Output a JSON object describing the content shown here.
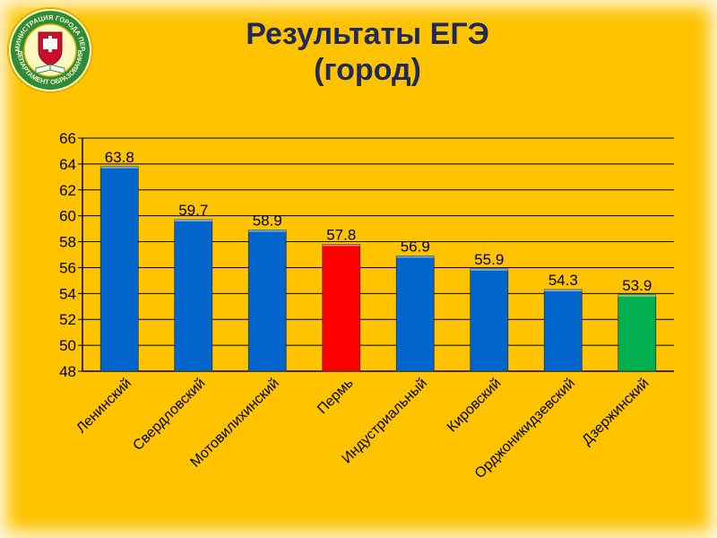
{
  "title_line1": "Результаты ЕГЭ",
  "title_line2": "(город)",
  "logo": {
    "top_text": "АДМИНИСТРАЦИЯ ГОРОДА ПЕРМИ",
    "bottom_text": "ДЕПАРТАМЕНТ ОБРАЗОВАНИЯ"
  },
  "colors": {
    "background": "#FFC300",
    "bar_default": "#0066CC",
    "bar_highlight_red": "#FF0000",
    "bar_highlight_green": "#00B050"
  },
  "chart_data": {
    "type": "bar",
    "categories": [
      "Ленинский",
      "Свердловский",
      "Мотовилихинский",
      "Пермь",
      "Индустриальный",
      "Кировский",
      "Орджоникидзевский",
      "Дзержинский"
    ],
    "values": [
      63.8,
      59.7,
      58.9,
      57.8,
      56.9,
      55.9,
      54.3,
      53.9
    ],
    "data_labels": [
      "63.8",
      "59.7",
      "58.9",
      "57.8",
      "56.9",
      "55.9",
      "54.3",
      "53.9"
    ],
    "bar_colors": [
      "#0066CC",
      "#0066CC",
      "#0066CC",
      "#FF0000",
      "#0066CC",
      "#0066CC",
      "#0066CC",
      "#00B050"
    ],
    "ylim": [
      48,
      66
    ],
    "yticks": [
      48,
      50,
      52,
      54,
      56,
      58,
      60,
      62,
      64,
      66
    ],
    "grid": true,
    "legend": "none"
  }
}
